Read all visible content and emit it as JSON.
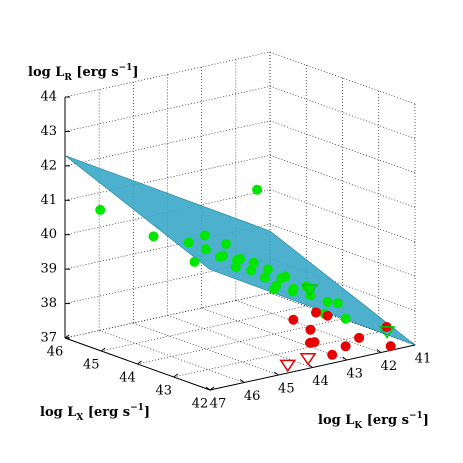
{
  "chart_data": {
    "type": "scatter3d",
    "zlabel": [
      "log ",
      "L",
      "R",
      " [erg s",
      "−1",
      "]"
    ],
    "ylabel": [
      "log ",
      "L",
      "X",
      " [erg s",
      "−1",
      "]"
    ],
    "xlabel": [
      "log ",
      "L",
      "K",
      " [erg s",
      "−1",
      "]"
    ],
    "xlim": [
      47,
      41
    ],
    "xticks": [
      47,
      46,
      45,
      44,
      43,
      42,
      41
    ],
    "ylim": [
      42,
      46
    ],
    "yticks": [
      42,
      43,
      44,
      45,
      46
    ],
    "zlim": [
      37,
      44
    ],
    "zticks": [
      37,
      38,
      39,
      40,
      41,
      42,
      43,
      44
    ],
    "grid": true,
    "plane": {
      "color": "#3aa8c8",
      "x": [
        47,
        47,
        41,
        41
      ],
      "y": [
        46,
        42,
        42,
        46
      ],
      "z": [
        42.3,
        40.5,
        37.0,
        38.8
      ]
    },
    "series": [
      {
        "color": "#00e600",
        "marker": "circle",
        "filled": true,
        "x": [
          46,
          45.5,
          45,
          44.8,
          44.5,
          44.2,
          44,
          43.8,
          43.5,
          43.5,
          43.2,
          43,
          43,
          42.8,
          42.5,
          42.5,
          42.2,
          44.5,
          44,
          43.5,
          44.2,
          43.6,
          43.3,
          43.8,
          42.8,
          44.8,
          46.5,
          43,
          42.5,
          44.3
        ],
        "y": [
          44.5,
          44,
          44,
          43.8,
          44,
          43.5,
          44,
          43.5,
          43.7,
          43,
          43.5,
          43.8,
          43,
          43.3,
          43.5,
          43,
          43,
          44.5,
          43,
          44,
          44.2,
          44,
          43.2,
          44.3,
          42.8,
          44.5,
          45.5,
          44,
          42.5,
          43.8
        ],
        "z": [
          40.3,
          40.2,
          39.9,
          39.7,
          39.6,
          39.3,
          39.4,
          39,
          39.1,
          38.8,
          38.9,
          38.7,
          38.5,
          38.6,
          38.4,
          38.2,
          38.1,
          40,
          39,
          41.3,
          39.8,
          39.2,
          38.6,
          39,
          38,
          39.3,
          40.8,
          38.3,
          37.9,
          39.5
        ]
      },
      {
        "color": "#e60000",
        "marker": "circle",
        "filled": true,
        "x": [
          43,
          42.8,
          43.2,
          42.5,
          42,
          41.5,
          42.5,
          43.5,
          42.2,
          41.3,
          43
        ],
        "y": [
          43,
          43.2,
          42.7,
          42.5,
          42.6,
          42.2,
          43,
          43,
          43.6,
          42.5,
          42.4
        ],
        "z": [
          37.5,
          37.0,
          37.3,
          37.1,
          37.2,
          37.0,
          37.8,
          37.9,
          37.6,
          37.4,
          37.0
        ]
      },
      {
        "color": "#00c800",
        "marker": "triangle",
        "filled": false,
        "x": [
          42.7,
          41.5
        ],
        "y": [
          43.3,
          42.3
        ],
        "z": [
          38.5,
          37.4
        ]
      },
      {
        "color": "#e60000",
        "marker": "triangle",
        "filled": false,
        "x": [
          43.6,
          44.3
        ],
        "y": [
          42.5,
          42.4
        ],
        "z": [
          37.0,
          37.0
        ]
      }
    ]
  }
}
